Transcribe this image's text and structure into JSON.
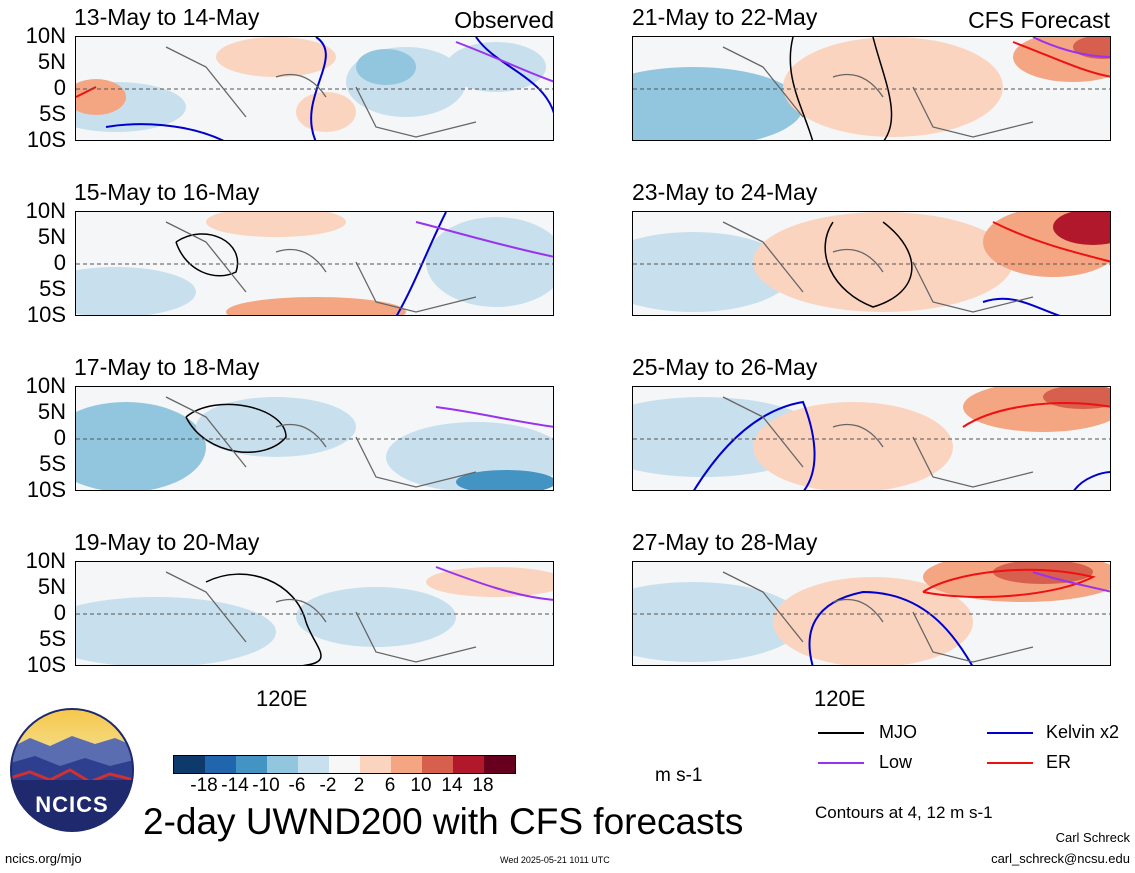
{
  "panels_left": [
    {
      "title": "13-May to 14-May",
      "tag": "Observed"
    },
    {
      "title": "15-May to 16-May",
      "tag": ""
    },
    {
      "title": "17-May to 18-May",
      "tag": ""
    },
    {
      "title": "19-May to 20-May",
      "tag": ""
    }
  ],
  "panels_right": [
    {
      "title": "21-May to 22-May",
      "tag": "CFS Forecast"
    },
    {
      "title": "23-May to 24-May",
      "tag": ""
    },
    {
      "title": "25-May to 26-May",
      "tag": ""
    },
    {
      "title": "27-May to 28-May",
      "tag": ""
    }
  ],
  "lat_labels": [
    "10N",
    "5N",
    "0",
    "5S",
    "10S"
  ],
  "lon_label": "120E",
  "colorbar": {
    "labels": [
      "-18",
      "-14",
      "-10",
      "-6",
      "-2",
      "2",
      "6",
      "10",
      "14",
      "18"
    ],
    "colors": [
      "#0d3a6b",
      "#2166ac",
      "#4393c3",
      "#92c5de",
      "#c8dfee",
      "#f7f7f7",
      "#fbd4c0",
      "#f4a582",
      "#d6604d",
      "#b2182b",
      "#67001f"
    ],
    "units": "m s-1"
  },
  "legend": {
    "mjo": {
      "label": "MJO",
      "color": "#000000"
    },
    "kelvin": {
      "label": "Kelvin x2",
      "color": "#0000cc"
    },
    "low": {
      "label": "Low",
      "color": "#9933ee"
    },
    "er": {
      "label": "ER",
      "color": "#ee1111"
    },
    "contours_note": "Contours at 4, 12 m s-1"
  },
  "logo_text": "NCICS",
  "main_title": "2-day UWND200 with CFS forecasts",
  "author": "Carl Schreck",
  "email": "carl_schreck@ncsu.edu",
  "url": "ncics.org/mjo",
  "timestamp": "Wed 2025-05-21 1011 UTC"
}
